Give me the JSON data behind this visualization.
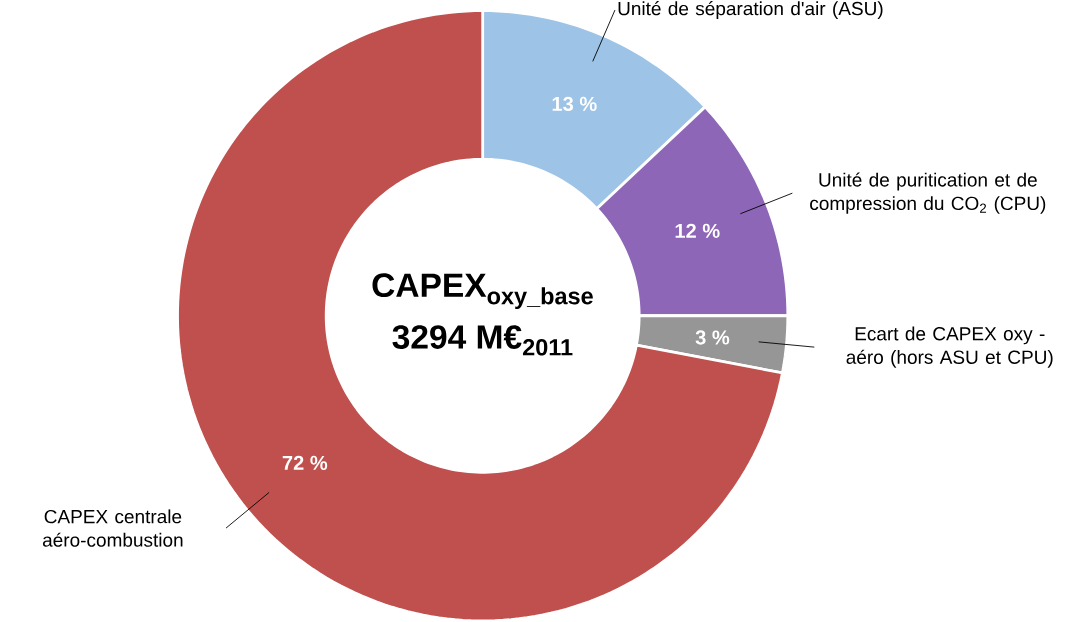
{
  "chart_data": {
    "type": "donut",
    "title": "CAPEX$_{oxy_base}$",
    "subtitle": "3294 M€$_{2011}$",
    "categories": [
      "Unité de séparation d'air (ASU)",
      "Unité de puritication et de compression du CO$_{2}$ (CPU)",
      "Ecart de CAPEX oxy - aéro (hors ASU et CPU)",
      "CAPEX centrale aéro-combustion"
    ],
    "values": [
      13,
      12,
      3,
      72
    ],
    "colors": [
      "#9dc3e6",
      "#8e66b8",
      "#969696",
      "#c0504d"
    ],
    "value_labels": [
      "13 %",
      "12 %",
      "3 %",
      "72 %"
    ]
  }
}
